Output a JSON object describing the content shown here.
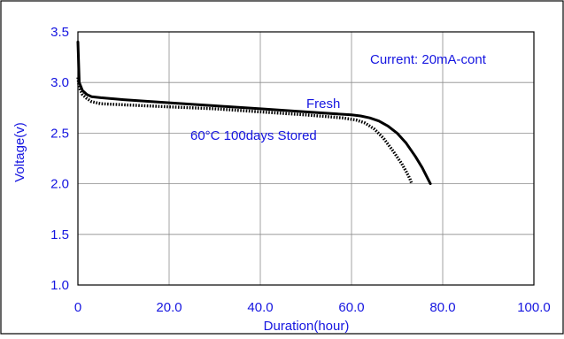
{
  "chart_data": {
    "type": "line",
    "title": "",
    "xlabel": "Duration(hour)",
    "ylabel": "Voltage(v)",
    "xlim": [
      0,
      100
    ],
    "ylim": [
      1.0,
      3.5
    ],
    "x_ticks": [
      0,
      20,
      40,
      60,
      80,
      100
    ],
    "x_tick_labels": [
      "0",
      "20.0",
      "40.0",
      "60.0",
      "80.0",
      "100.0"
    ],
    "y_ticks": [
      1.0,
      1.5,
      2.0,
      2.5,
      3.0,
      3.5
    ],
    "y_tick_labels": [
      "1.0",
      "1.5",
      "2.0",
      "2.5",
      "3.0",
      "3.5"
    ],
    "grid": true,
    "annotations": {
      "current": "Current: 20mA-cont",
      "fresh_label": "Fresh",
      "stored_label": "60°C 100days Stored"
    },
    "series": [
      {
        "name": "Fresh",
        "style": "solid",
        "color": "#000000",
        "x": [
          0,
          0.3,
          1,
          2,
          3,
          5,
          10,
          20,
          30,
          40,
          50,
          60,
          62,
          64,
          66,
          68,
          70,
          72,
          74,
          75.5,
          76.5,
          77.3
        ],
        "y": [
          3.4,
          3.0,
          2.92,
          2.88,
          2.86,
          2.85,
          2.83,
          2.8,
          2.77,
          2.74,
          2.71,
          2.68,
          2.67,
          2.65,
          2.62,
          2.57,
          2.5,
          2.4,
          2.27,
          2.16,
          2.07,
          2.0
        ]
      },
      {
        "name": "60°C 100days Stored",
        "style": "dotted",
        "color": "#000000",
        "x": [
          0,
          0.3,
          1,
          2,
          3,
          5,
          10,
          20,
          30,
          40,
          50,
          58,
          61,
          63,
          65,
          67,
          69,
          71,
          72,
          72.8,
          73.2
        ],
        "y": [
          3.05,
          2.95,
          2.88,
          2.84,
          2.81,
          2.79,
          2.78,
          2.76,
          2.74,
          2.71,
          2.68,
          2.65,
          2.63,
          2.6,
          2.54,
          2.45,
          2.33,
          2.2,
          2.12,
          2.05,
          2.0
        ]
      }
    ]
  }
}
